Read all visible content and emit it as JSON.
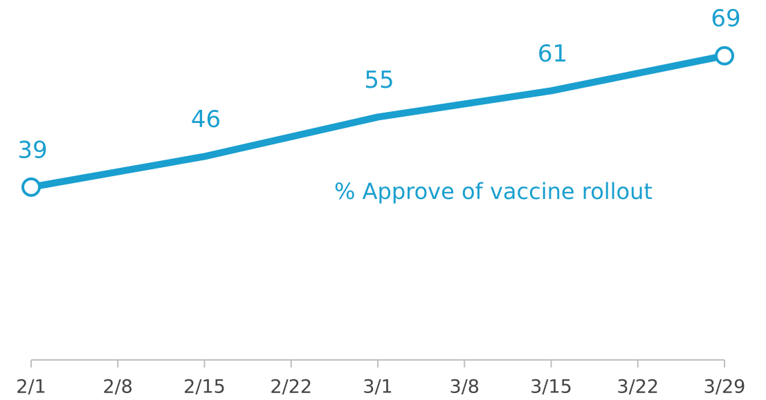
{
  "chart_data": {
    "type": "line",
    "categories": [
      "2/1",
      "2/8",
      "2/15",
      "2/22",
      "3/1",
      "3/8",
      "3/15",
      "3/22",
      "3/29"
    ],
    "x": [
      "2/1",
      "2/15",
      "3/1",
      "3/15",
      "3/29"
    ],
    "series": [
      {
        "name": "% Approve of vaccine rollout",
        "color": "#1a9fcf",
        "values": [
          39,
          46,
          55,
          61,
          69
        ]
      }
    ],
    "ylim": [
      0,
      80
    ]
  }
}
